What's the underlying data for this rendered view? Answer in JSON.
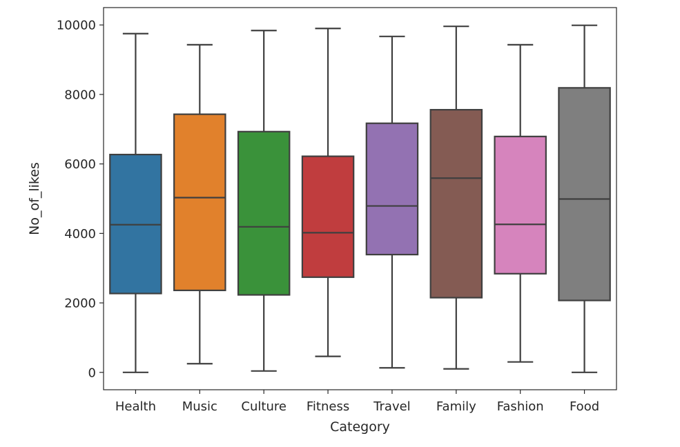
{
  "chart_data": {
    "type": "box",
    "title": "",
    "xlabel": "Category",
    "ylabel": "No_of_likes",
    "ylim": [
      -500,
      10500
    ],
    "yticks": [
      0,
      2000,
      4000,
      6000,
      8000,
      10000
    ],
    "grid": false,
    "legend": "none",
    "categories": [
      "Health",
      "Music",
      "Culture",
      "Fitness",
      "Travel",
      "Family",
      "Fashion",
      "Food"
    ],
    "colors": [
      "#3274a1",
      "#e1812c",
      "#3a923a",
      "#c03d3e",
      "#9372b2",
      "#845b53",
      "#d684bd",
      "#7f7f7f"
    ],
    "boxes": [
      {
        "category": "Health",
        "whisker_low": 0,
        "q1": 2270,
        "median": 4250,
        "q3": 6270,
        "whisker_high": 9750
      },
      {
        "category": "Music",
        "whisker_low": 250,
        "q1": 2360,
        "median": 5030,
        "q3": 7430,
        "whisker_high": 9430
      },
      {
        "category": "Culture",
        "whisker_low": 40,
        "q1": 2230,
        "median": 4190,
        "q3": 6930,
        "whisker_high": 9840
      },
      {
        "category": "Fitness",
        "whisker_low": 460,
        "q1": 2740,
        "median": 4020,
        "q3": 6220,
        "whisker_high": 9900
      },
      {
        "category": "Travel",
        "whisker_low": 130,
        "q1": 3390,
        "median": 4790,
        "q3": 7170,
        "whisker_high": 9670
      },
      {
        "category": "Family",
        "whisker_low": 100,
        "q1": 2150,
        "median": 5590,
        "q3": 7560,
        "whisker_high": 9960
      },
      {
        "category": "Fashion",
        "whisker_low": 300,
        "q1": 2840,
        "median": 4260,
        "q3": 6790,
        "whisker_high": 9430
      },
      {
        "category": "Food",
        "whisker_low": 0,
        "q1": 2070,
        "median": 4990,
        "q3": 8190,
        "whisker_high": 9990
      }
    ]
  }
}
